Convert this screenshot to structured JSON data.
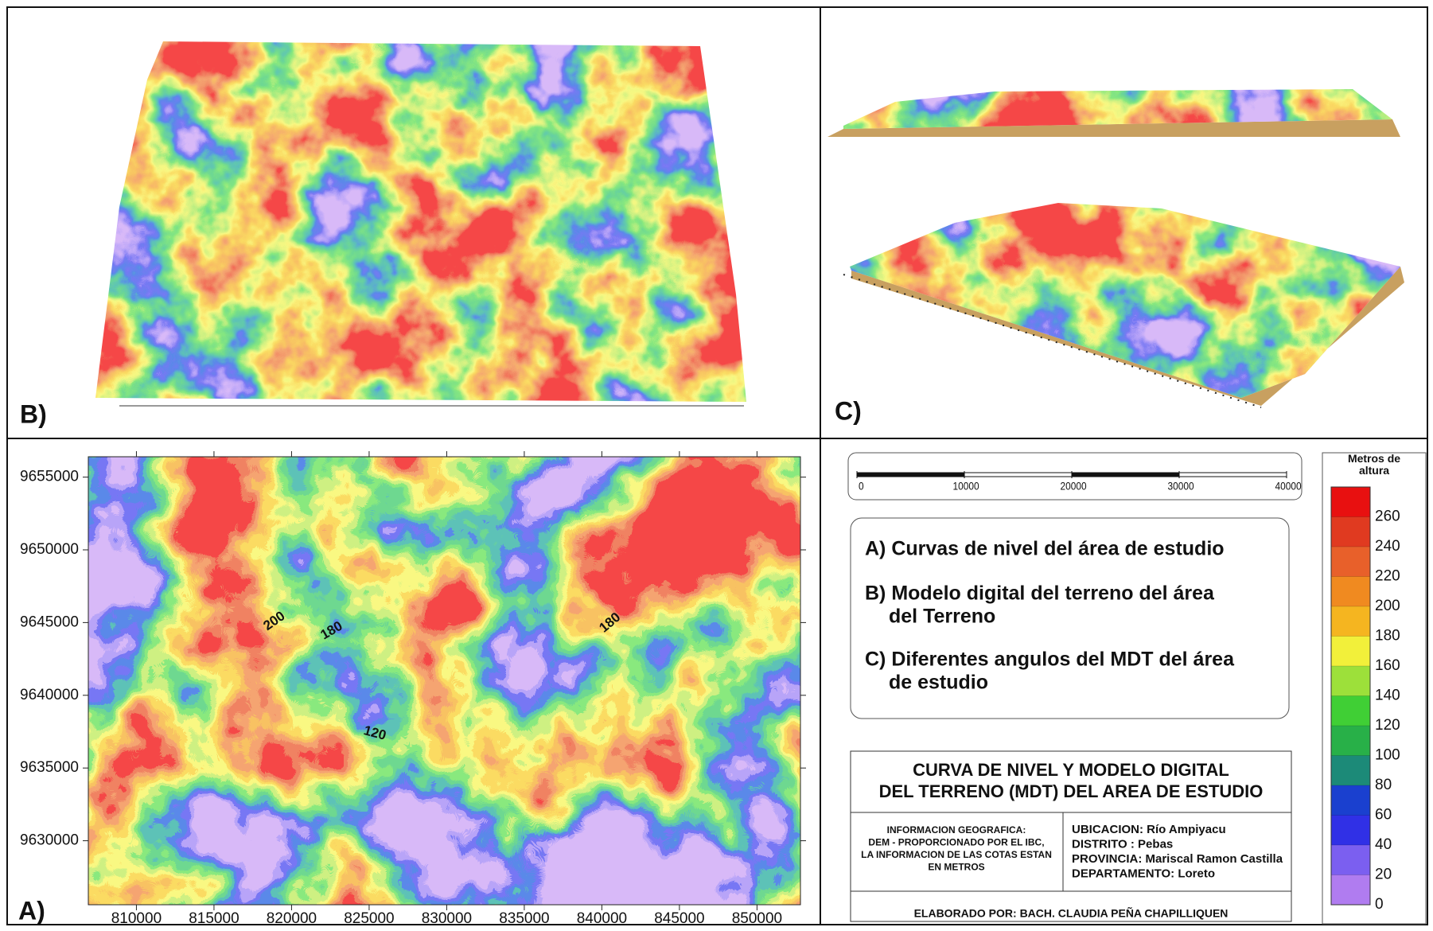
{
  "panels": {
    "a": {
      "label": "A)"
    },
    "b": {
      "label": "B)"
    },
    "c": {
      "label": "C)"
    }
  },
  "chart_data": {
    "type": "contour",
    "xlim": [
      806900,
      852800
    ],
    "ylim": [
      9625600,
      9656400
    ],
    "xticks": [
      810000,
      815000,
      820000,
      825000,
      830000,
      835000,
      840000,
      845000,
      850000
    ],
    "yticks": [
      9630000,
      9635000,
      9640000,
      9645000,
      9650000,
      9655000
    ],
    "contour_labels": [
      200,
      180,
      180,
      120
    ]
  },
  "scale_bar": {
    "ticks": [
      0,
      10000,
      20000,
      30000,
      40000
    ]
  },
  "legend": {
    "title": "Metros de altura",
    "lim": [
      0,
      280
    ],
    "ticks": [
      0,
      20,
      40,
      60,
      80,
      100,
      120,
      140,
      160,
      180,
      200,
      220,
      240,
      260
    ],
    "colors": [
      "#b07cf0",
      "#7b5ff0",
      "#3030e6",
      "#1a40cf",
      "#1c8a78",
      "#28b048",
      "#40cf35",
      "#9de03a",
      "#f2f03a",
      "#f5b520",
      "#f08a20",
      "#e8602a",
      "#e03a20",
      "#e81010"
    ]
  },
  "captions": [
    [
      "A) Curvas de nivel del área de estudio"
    ],
    [
      "B) Modelo digital del terreno del área",
      "del Terreno"
    ],
    [
      "C) Diferentes angulos del MDT del área",
      "de estudio"
    ]
  ],
  "title_box": {
    "title": [
      "CURVA DE NIVEL Y MODELO DIGITAL",
      "DEL TERRENO (MDT) DEL AREA DE ESTUDIO"
    ],
    "info": [
      "INFORMACION GEOGRAFICA:",
      "DEM - PROPORCIONADO POR EL IBC,",
      "LA INFORMACION DE LAS COTAS ESTAN",
      "EN METROS"
    ],
    "location": [
      "UBICACION:   Río Ampiyacu",
      "DISTRITO  : Pebas",
      "PROVINCIA: Mariscal Ramon Castilla",
      "DEPARTAMENTO: Loreto"
    ],
    "author": "ELABORADO POR: BACH. CLAUDIA PEÑA CHAPILLIQUEN"
  }
}
